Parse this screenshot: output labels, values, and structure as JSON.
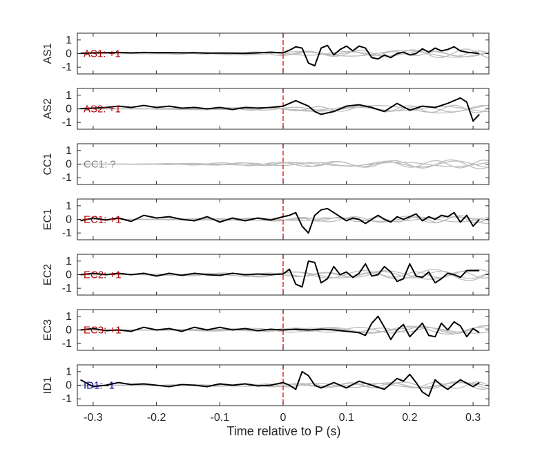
{
  "chart_data": {
    "type": "line",
    "xlabel": "Time relative to P (s)",
    "xlim": [
      -0.325,
      0.325
    ],
    "x_ticks": [
      -0.3,
      -0.2,
      -0.1,
      0,
      0.1,
      0.2,
      0.3
    ],
    "x_tick_labels": [
      "-0.3",
      "-0.2",
      "-0.1",
      "0",
      "0.1",
      "0.2",
      "0.3"
    ],
    "ylim": [
      -1.5,
      1.5
    ],
    "y_ticks": [
      -1,
      0,
      1
    ],
    "y_tick_labels": [
      "-1",
      "0",
      "1"
    ],
    "p_marker_x": 0,
    "colors": {
      "trace": "#000000",
      "background_traces": "#bdbdbd",
      "p_marker": "#e31a1c",
      "positive_label": "#b30000",
      "negative_label": "#00008b",
      "unknown_label": "#7f7f7f"
    },
    "panels": [
      {
        "ylabel": "AS1",
        "label": "AS1: +1",
        "label_color": "#b30000",
        "has_trace": true,
        "trace_x": [
          -0.32,
          -0.3,
          -0.28,
          -0.26,
          -0.24,
          -0.22,
          -0.2,
          -0.18,
          -0.16,
          -0.14,
          -0.12,
          -0.1,
          -0.08,
          -0.06,
          -0.04,
          -0.02,
          0.0,
          0.01,
          0.02,
          0.03,
          0.04,
          0.05,
          0.06,
          0.07,
          0.08,
          0.09,
          0.1,
          0.11,
          0.12,
          0.13,
          0.14,
          0.15,
          0.16,
          0.17,
          0.18,
          0.19,
          0.2,
          0.21,
          0.22,
          0.23,
          0.24,
          0.25,
          0.26,
          0.27,
          0.28,
          0.29,
          0.3,
          0.31
        ],
        "trace_y": [
          0.02,
          0.05,
          0.06,
          0.08,
          0.05,
          0.08,
          0.06,
          0.07,
          0.05,
          0.06,
          0.03,
          0.04,
          0.03,
          0.02,
          0.05,
          0.1,
          0.05,
          0.25,
          0.5,
          0.4,
          -0.7,
          -0.9,
          0.4,
          0.6,
          -0.1,
          0.3,
          0.55,
          0.2,
          0.55,
          0.4,
          -0.3,
          -0.4,
          -0.1,
          -0.3,
          0.0,
          0.1,
          -0.1,
          0.0,
          0.35,
          0.1,
          0.4,
          0.2,
          0.3,
          0.5,
          0.2,
          0.1,
          0.05,
          0.0
        ],
        "background": [
          {
            "amp": 0.25,
            "freq": 8,
            "phase": 0.3
          },
          {
            "amp": 0.35,
            "freq": 12,
            "phase": 1.2
          },
          {
            "amp": 0.3,
            "freq": 6,
            "phase": 2.0
          },
          {
            "amp": 0.2,
            "freq": 15,
            "phase": 0.8
          }
        ]
      },
      {
        "ylabel": "AS2",
        "label": "AS2: +1",
        "label_color": "#b30000",
        "has_trace": true,
        "trace_x": [
          -0.32,
          -0.3,
          -0.28,
          -0.26,
          -0.24,
          -0.22,
          -0.2,
          -0.18,
          -0.16,
          -0.14,
          -0.12,
          -0.1,
          -0.08,
          -0.06,
          -0.04,
          -0.02,
          0.0,
          0.02,
          0.04,
          0.05,
          0.06,
          0.08,
          0.1,
          0.12,
          0.14,
          0.16,
          0.18,
          0.2,
          0.22,
          0.24,
          0.26,
          0.28,
          0.29,
          0.3,
          0.31
        ],
        "trace_y": [
          0.02,
          0.05,
          0.1,
          0.2,
          0.1,
          0.25,
          0.1,
          0.2,
          0.05,
          0.1,
          0.0,
          0.1,
          -0.05,
          0.1,
          0.05,
          0.1,
          0.2,
          0.6,
          0.2,
          -0.2,
          -0.4,
          -0.2,
          0.2,
          0.3,
          0.1,
          -0.2,
          0.4,
          -0.1,
          0.2,
          0.1,
          0.4,
          0.8,
          0.5,
          -0.9,
          -0.4
        ],
        "background": [
          {
            "amp": 0.25,
            "freq": 10,
            "phase": 0.5
          },
          {
            "amp": 0.3,
            "freq": 14,
            "phase": 1.7
          },
          {
            "amp": 0.2,
            "freq": 7,
            "phase": 2.4
          },
          {
            "amp": 0.35,
            "freq": 5,
            "phase": 0.1
          }
        ]
      },
      {
        "ylabel": "CC1",
        "label": "CC1: ?",
        "label_color": "#7f7f7f",
        "has_trace": false,
        "trace_x": [],
        "trace_y": [],
        "background": [
          {
            "amp": 0.25,
            "freq": 9,
            "phase": 0.6
          },
          {
            "amp": 0.3,
            "freq": 13,
            "phase": 1.4
          },
          {
            "amp": 0.2,
            "freq": 6,
            "phase": 2.2
          },
          {
            "amp": 0.35,
            "freq": 11,
            "phase": 0.2
          }
        ]
      },
      {
        "ylabel": "EC1",
        "label": "EC1: +1",
        "label_color": "#b30000",
        "has_trace": true,
        "trace_x": [
          -0.32,
          -0.3,
          -0.28,
          -0.26,
          -0.24,
          -0.22,
          -0.2,
          -0.18,
          -0.16,
          -0.14,
          -0.12,
          -0.1,
          -0.08,
          -0.06,
          -0.04,
          -0.02,
          0.0,
          0.01,
          0.02,
          0.03,
          0.04,
          0.05,
          0.06,
          0.07,
          0.08,
          0.09,
          0.1,
          0.11,
          0.12,
          0.13,
          0.14,
          0.15,
          0.16,
          0.17,
          0.18,
          0.19,
          0.2,
          0.21,
          0.22,
          0.23,
          0.24,
          0.25,
          0.26,
          0.27,
          0.28,
          0.29,
          0.3,
          0.31
        ],
        "trace_y": [
          -0.1,
          0.1,
          -0.05,
          0.1,
          -0.15,
          0.3,
          0.1,
          0.2,
          0.0,
          -0.1,
          0.2,
          -0.2,
          0.1,
          -0.1,
          0.1,
          -0.05,
          0.2,
          0.3,
          0.5,
          -0.5,
          -1.0,
          0.3,
          0.7,
          0.8,
          0.5,
          0.2,
          -0.1,
          0.1,
          0.0,
          -0.3,
          0.0,
          0.3,
          0.0,
          -0.2,
          0.2,
          0.0,
          0.2,
          0.4,
          -0.1,
          0.2,
          0.0,
          0.3,
          0.2,
          0.5,
          -0.2,
          0.3,
          -0.5,
          0.0
        ],
        "background": [
          {
            "amp": 0.2,
            "freq": 8,
            "phase": 0.9
          },
          {
            "amp": 0.3,
            "freq": 12,
            "phase": 1.9
          },
          {
            "amp": 0.25,
            "freq": 16,
            "phase": 0.4
          },
          {
            "amp": 0.2,
            "freq": 5,
            "phase": 2.7
          }
        ]
      },
      {
        "ylabel": "EC2",
        "label": "EC2: +1",
        "label_color": "#b30000",
        "has_trace": true,
        "trace_x": [
          -0.32,
          -0.3,
          -0.28,
          -0.26,
          -0.24,
          -0.22,
          -0.2,
          -0.18,
          -0.16,
          -0.14,
          -0.12,
          -0.1,
          -0.08,
          -0.06,
          -0.04,
          -0.02,
          0.0,
          0.01,
          0.02,
          0.03,
          0.04,
          0.05,
          0.06,
          0.07,
          0.08,
          0.09,
          0.1,
          0.11,
          0.12,
          0.13,
          0.14,
          0.15,
          0.16,
          0.17,
          0.18,
          0.19,
          0.2,
          0.21,
          0.22,
          0.23,
          0.24,
          0.25,
          0.26,
          0.27,
          0.28,
          0.29,
          0.3,
          0.31
        ],
        "trace_y": [
          0.0,
          0.1,
          0.0,
          0.1,
          0.0,
          0.1,
          -0.1,
          0.1,
          -0.05,
          0.1,
          0.0,
          -0.05,
          0.1,
          0.0,
          0.05,
          0.0,
          0.05,
          0.4,
          -0.7,
          -0.9,
          1.0,
          0.9,
          -0.6,
          -0.3,
          0.6,
          0.0,
          0.2,
          -0.2,
          0.1,
          0.8,
          -0.1,
          0.0,
          0.6,
          0.2,
          -0.5,
          -0.3,
          0.8,
          -0.1,
          -0.2,
          0.2,
          -0.6,
          -0.3,
          0.1,
          0.0,
          -0.2,
          0.3,
          0.3,
          0.3
        ],
        "background": [
          {
            "amp": 0.4,
            "freq": 7,
            "phase": 0.2
          },
          {
            "amp": 0.3,
            "freq": 11,
            "phase": 1.3
          },
          {
            "amp": 0.45,
            "freq": 9,
            "phase": 2.6
          },
          {
            "amp": 0.25,
            "freq": 14,
            "phase": 0.7
          }
        ]
      },
      {
        "ylabel": "EC3",
        "label": "EC3: +1",
        "label_color": "#b30000",
        "has_trace": true,
        "trace_x": [
          -0.32,
          -0.3,
          -0.28,
          -0.26,
          -0.24,
          -0.22,
          -0.2,
          -0.18,
          -0.16,
          -0.14,
          -0.12,
          -0.1,
          -0.08,
          -0.06,
          -0.04,
          -0.02,
          0.0,
          0.02,
          0.04,
          0.06,
          0.08,
          0.1,
          0.12,
          0.13,
          0.14,
          0.15,
          0.16,
          0.17,
          0.18,
          0.19,
          0.2,
          0.21,
          0.22,
          0.23,
          0.24,
          0.25,
          0.26,
          0.27,
          0.28,
          0.29,
          0.3,
          0.31
        ],
        "trace_y": [
          0.0,
          0.1,
          -0.05,
          0.0,
          -0.1,
          0.2,
          0.0,
          0.1,
          -0.1,
          0.2,
          0.0,
          0.2,
          0.0,
          0.1,
          -0.05,
          0.05,
          0.0,
          0.05,
          0.0,
          0.05,
          0.0,
          -0.1,
          -0.2,
          -0.4,
          0.5,
          1.0,
          0.2,
          -0.7,
          0.0,
          0.4,
          -0.5,
          0.0,
          0.5,
          -0.4,
          -0.5,
          0.5,
          0.0,
          0.6,
          0.3,
          -0.5,
          0.1,
          -0.2
        ],
        "background": [
          {
            "amp": 0.25,
            "freq": 6,
            "phase": 1.0
          },
          {
            "amp": 0.3,
            "freq": 10,
            "phase": 0.3
          },
          {
            "amp": 0.2,
            "freq": 13,
            "phase": 2.1
          },
          {
            "amp": 0.35,
            "freq": 8,
            "phase": 1.6
          }
        ]
      },
      {
        "ylabel": "ID1",
        "label": "ID1: -1",
        "label_color": "#00008b",
        "has_trace": true,
        "trace_x": [
          -0.32,
          -0.3,
          -0.28,
          -0.26,
          -0.24,
          -0.22,
          -0.2,
          -0.18,
          -0.16,
          -0.14,
          -0.12,
          -0.1,
          -0.08,
          -0.06,
          -0.04,
          -0.02,
          0.0,
          0.01,
          0.02,
          0.03,
          0.04,
          0.05,
          0.06,
          0.08,
          0.1,
          0.12,
          0.14,
          0.16,
          0.18,
          0.19,
          0.2,
          0.21,
          0.22,
          0.23,
          0.24,
          0.25,
          0.26,
          0.28,
          0.3,
          0.31
        ],
        "trace_y": [
          0.4,
          -0.1,
          0.0,
          0.2,
          0.05,
          0.1,
          0.0,
          -0.1,
          0.05,
          0.0,
          -0.1,
          0.1,
          0.0,
          0.1,
          -0.05,
          0.0,
          0.2,
          0.0,
          -0.3,
          1.0,
          0.7,
          0.0,
          -0.2,
          0.2,
          -0.2,
          0.3,
          0.0,
          -0.3,
          0.5,
          0.3,
          0.8,
          0.2,
          -0.5,
          -0.8,
          0.4,
          0.0,
          -0.3,
          0.4,
          -0.1,
          0.2
        ],
        "background": [
          {
            "amp": 0.25,
            "freq": 9,
            "phase": 0.4
          },
          {
            "amp": 0.3,
            "freq": 12,
            "phase": 2.3
          },
          {
            "amp": 0.2,
            "freq": 7,
            "phase": 1.1
          },
          {
            "amp": 0.25,
            "freq": 15,
            "phase": 0.9
          }
        ]
      }
    ]
  }
}
